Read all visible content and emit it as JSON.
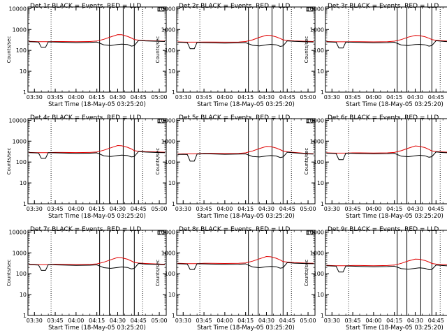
{
  "figure": {
    "common": {
      "type": "line",
      "xlabel": "Start Time (18-May-05 03:25:20)",
      "ylabel": "Counts/sec",
      "x_tick_labels": [
        "03:30",
        "03:45",
        "04:00",
        "04:15",
        "04:30",
        "04:45",
        "05:00"
      ],
      "y_tick_labels": [
        "1",
        "10",
        "100",
        "1000",
        "10000"
      ],
      "y_scale": "log",
      "ylim": [
        1,
        12000
      ],
      "xlim": [
        "03:25:20",
        "05:05:00"
      ],
      "series_colors": {
        "black": "#000000",
        "red": "#e00000"
      },
      "vertical_markers_dotted": [
        "03:42",
        "04:48"
      ],
      "vertical_markers_solid": [
        "04:17",
        "04:24",
        "04:34",
        "04:42"
      ]
    }
  },
  "chart_data": [
    {
      "type": "line",
      "title": "Det 1r BLACK = Events, RED = LLD",
      "time": [
        "03:26",
        "03:30",
        "03:33",
        "03:35",
        "03:38",
        "03:40",
        "03:45",
        "03:50",
        "04:00",
        "04:10",
        "04:15",
        "04:20",
        "04:25",
        "04:30",
        "04:33",
        "04:37",
        "04:40",
        "04:42",
        "04:45",
        "04:50",
        "05:00",
        "05:04"
      ],
      "series": [
        {
          "color": "black",
          "values": [
            260,
            255,
            250,
            140,
            140,
            255,
            250,
            245,
            235,
            240,
            250,
            185,
            170,
            190,
            200,
            190,
            160,
            170,
            300,
            285,
            270,
            265
          ]
        },
        {
          "color": "red",
          "values": [
            270,
            265,
            262,
            262,
            262,
            262,
            265,
            265,
            260,
            265,
            280,
            340,
            440,
            570,
            560,
            470,
            390,
            330,
            310,
            295,
            280,
            275
          ]
        }
      ]
    },
    {
      "type": "line",
      "title": "Det 2r BLACK = Events, RED = LLD",
      "time": [
        "03:26",
        "03:30",
        "03:33",
        "03:35",
        "03:38",
        "03:40",
        "03:45",
        "03:50",
        "04:00",
        "04:10",
        "04:15",
        "04:20",
        "04:25",
        "04:30",
        "04:33",
        "04:37",
        "04:40",
        "04:42",
        "04:45",
        "04:50",
        "05:00",
        "05:04"
      ],
      "series": [
        {
          "color": "black",
          "values": [
            245,
            240,
            235,
            120,
            120,
            240,
            235,
            230,
            225,
            230,
            235,
            175,
            165,
            185,
            195,
            185,
            155,
            165,
            285,
            270,
            255,
            250
          ]
        },
        {
          "color": "red",
          "values": [
            255,
            250,
            248,
            248,
            248,
            248,
            252,
            250,
            248,
            252,
            265,
            320,
            420,
            530,
            520,
            440,
            370,
            320,
            300,
            285,
            270,
            265
          ]
        }
      ]
    },
    {
      "type": "line",
      "title": "Det 3r BLACK = Events, RED = LLD",
      "time": [
        "03:26",
        "03:30",
        "03:33",
        "03:35",
        "03:38",
        "03:40",
        "03:45",
        "03:50",
        "04:00",
        "04:10",
        "04:15",
        "04:20",
        "04:25",
        "04:30",
        "04:33",
        "04:37",
        "04:40",
        "04:42",
        "04:45",
        "04:50",
        "05:00",
        "05:04"
      ],
      "series": [
        {
          "color": "black",
          "values": [
            255,
            250,
            245,
            130,
            130,
            250,
            245,
            240,
            230,
            235,
            245,
            180,
            170,
            190,
            195,
            185,
            160,
            170,
            290,
            270,
            245,
            240
          ]
        },
        {
          "color": "red",
          "values": [
            265,
            260,
            258,
            258,
            258,
            258,
            260,
            260,
            255,
            260,
            275,
            330,
            430,
            520,
            510,
            450,
            380,
            330,
            305,
            290,
            265,
            260
          ]
        }
      ]
    },
    {
      "type": "line",
      "title": "Det 4r BLACK = Events, RED = LLD",
      "time": [
        "03:26",
        "03:30",
        "03:33",
        "03:35",
        "03:38",
        "03:40",
        "03:45",
        "03:50",
        "04:00",
        "04:10",
        "04:15",
        "04:20",
        "04:25",
        "04:30",
        "04:33",
        "04:37",
        "04:40",
        "04:42",
        "04:45",
        "04:50",
        "05:00",
        "05:04"
      ],
      "series": [
        {
          "color": "black",
          "values": [
            280,
            275,
            270,
            150,
            150,
            280,
            275,
            270,
            260,
            265,
            275,
            200,
            185,
            205,
            215,
            205,
            175,
            185,
            320,
            300,
            285,
            280
          ]
        },
        {
          "color": "red",
          "values": [
            290,
            285,
            282,
            282,
            282,
            282,
            290,
            290,
            285,
            290,
            305,
            370,
            480,
            620,
            600,
            510,
            420,
            350,
            330,
            315,
            300,
            295
          ]
        }
      ]
    },
    {
      "type": "line",
      "title": "Det 5r BLACK = Events, RED = LLD",
      "time": [
        "03:26",
        "03:30",
        "03:33",
        "03:35",
        "03:38",
        "03:40",
        "03:45",
        "03:50",
        "04:00",
        "04:10",
        "04:15",
        "04:20",
        "04:25",
        "04:30",
        "04:33",
        "04:37",
        "04:40",
        "04:42",
        "04:45",
        "04:50",
        "05:00",
        "05:04"
      ],
      "series": [
        {
          "color": "black",
          "values": [
            230,
            235,
            230,
            110,
            110,
            240,
            250,
            245,
            235,
            240,
            245,
            185,
            175,
            195,
            205,
            195,
            165,
            175,
            295,
            275,
            245,
            240
          ]
        },
        {
          "color": "red",
          "values": [
            240,
            245,
            245,
            245,
            245,
            250,
            262,
            262,
            258,
            262,
            275,
            340,
            440,
            560,
            550,
            470,
            390,
            335,
            310,
            290,
            255,
            250
          ]
        }
      ]
    },
    {
      "type": "line",
      "title": "Det 6r BLACK = Events, RED = LLD",
      "time": [
        "03:26",
        "03:30",
        "03:33",
        "03:35",
        "03:38",
        "03:40",
        "03:45",
        "03:50",
        "04:00",
        "04:10",
        "04:15",
        "04:20",
        "04:25",
        "04:30",
        "04:33",
        "04:37",
        "04:40",
        "04:42",
        "04:45",
        "04:50",
        "05:00",
        "05:04"
      ],
      "series": [
        {
          "color": "black",
          "values": [
            265,
            260,
            255,
            130,
            130,
            265,
            260,
            255,
            245,
            250,
            260,
            190,
            180,
            200,
            210,
            200,
            170,
            180,
            305,
            285,
            265,
            260
          ]
        },
        {
          "color": "red",
          "values": [
            275,
            270,
            268,
            268,
            268,
            268,
            275,
            275,
            270,
            275,
            290,
            350,
            460,
            590,
            570,
            490,
            400,
            340,
            320,
            305,
            285,
            280
          ]
        }
      ]
    },
    {
      "type": "line",
      "title": "Det 7r BLACK = Events, RED = LLD",
      "time": [
        "03:26",
        "03:30",
        "03:33",
        "03:35",
        "03:38",
        "03:40",
        "03:45",
        "03:50",
        "04:00",
        "04:10",
        "04:15",
        "04:20",
        "04:25",
        "04:30",
        "04:33",
        "04:37",
        "04:40",
        "04:42",
        "04:45",
        "04:50",
        "05:00",
        "05:04"
      ],
      "series": [
        {
          "color": "black",
          "values": [
            270,
            265,
            260,
            145,
            145,
            270,
            265,
            260,
            250,
            255,
            265,
            195,
            180,
            200,
            210,
            200,
            170,
            180,
            310,
            290,
            275,
            270
          ]
        },
        {
          "color": "red",
          "values": [
            280,
            275,
            272,
            272,
            272,
            272,
            280,
            280,
            275,
            280,
            295,
            355,
            465,
            600,
            580,
            495,
            405,
            345,
            325,
            310,
            290,
            285
          ]
        }
      ]
    },
    {
      "type": "line",
      "title": "Det 8r BLACK = Events, RED = LLD",
      "time": [
        "03:26",
        "03:30",
        "03:33",
        "03:35",
        "03:38",
        "03:40",
        "03:45",
        "03:50",
        "04:00",
        "04:10",
        "04:15",
        "04:20",
        "04:25",
        "04:30",
        "04:33",
        "04:37",
        "04:40",
        "04:42",
        "04:45",
        "04:50",
        "05:00",
        "05:04"
      ],
      "series": [
        {
          "color": "black",
          "values": [
            300,
            295,
            290,
            160,
            160,
            300,
            295,
            290,
            280,
            285,
            295,
            210,
            195,
            215,
            225,
            215,
            185,
            195,
            340,
            320,
            305,
            300
          ]
        },
        {
          "color": "red",
          "values": [
            315,
            310,
            305,
            305,
            305,
            305,
            315,
            315,
            310,
            315,
            330,
            400,
            520,
            670,
            650,
            550,
            450,
            380,
            360,
            340,
            320,
            315
          ]
        }
      ]
    },
    {
      "type": "line",
      "title": "Det 9r BLACK = Events, RED = LLD",
      "time": [
        "03:26",
        "03:30",
        "03:33",
        "03:35",
        "03:38",
        "03:40",
        "03:45",
        "03:50",
        "04:00",
        "04:10",
        "04:15",
        "04:20",
        "04:25",
        "04:30",
        "04:33",
        "04:37",
        "04:40",
        "04:42",
        "04:45",
        "04:50",
        "05:00",
        "05:04"
      ],
      "series": [
        {
          "color": "black",
          "values": [
            240,
            235,
            230,
            120,
            120,
            235,
            230,
            225,
            215,
            220,
            230,
            175,
            165,
            180,
            190,
            180,
            155,
            160,
            260,
            245,
            225,
            220
          ]
        },
        {
          "color": "red",
          "values": [
            250,
            245,
            243,
            243,
            243,
            243,
            248,
            248,
            243,
            248,
            260,
            315,
            410,
            500,
            490,
            430,
            360,
            310,
            290,
            275,
            255,
            250
          ]
        }
      ]
    }
  ]
}
